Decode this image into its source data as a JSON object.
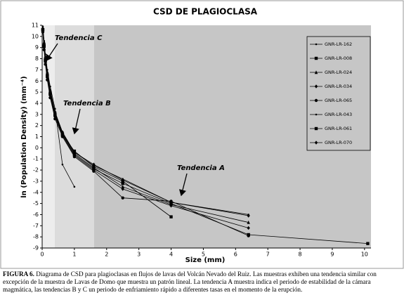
{
  "chart_data": {
    "type": "line",
    "title": "CSD DE PLAGIOCLASA",
    "x_label": "Size (mm)",
    "y_label": "ln (Population Density) (mm⁻⁴)",
    "annotations": [
      "Tendencia C",
      "Tendencia B",
      "Tendencia A"
    ],
    "x": [
      0.02,
      0.06,
      0.1,
      0.16,
      0.25,
      0.4,
      0.63,
      1.0,
      1.6,
      2.5,
      4.0,
      6.4,
      10.1
    ],
    "series": [
      {
        "name": "GNR-LR-162",
        "color": "#000000",
        "values": [
          10.8,
          9.5,
          8.2,
          6.8,
          5.2,
          3.2,
          1.4,
          -0.4,
          -1.6,
          -2.8,
          -4.9,
          -6.0,
          null
        ]
      },
      {
        "name": "GNR-LR-008",
        "color": "#000000",
        "values": [
          10.6,
          9.2,
          7.9,
          6.5,
          4.9,
          3.0,
          1.2,
          -0.6,
          -1.9,
          -3.2,
          -5.0,
          -7.8,
          -8.6
        ]
      },
      {
        "name": "GNR-LR-024",
        "color": "#000000",
        "values": [
          10.7,
          9.3,
          8.0,
          6.6,
          5.0,
          3.1,
          1.3,
          -0.5,
          -1.8,
          -3.5,
          -5.1,
          -6.7,
          null
        ]
      },
      {
        "name": "GNR-LR-034",
        "color": "#000000",
        "values": [
          10.5,
          9.0,
          7.7,
          6.3,
          4.7,
          2.8,
          1.1,
          -0.7,
          -2.0,
          -3.7,
          -5.2,
          -7.2,
          null
        ]
      },
      {
        "name": "GNR-LR-065",
        "color": "#000000",
        "values": [
          10.4,
          8.8,
          7.5,
          6.1,
          4.5,
          2.6,
          1.0,
          -0.8,
          -2.1,
          -4.5,
          -4.8,
          -7.9,
          null
        ]
      },
      {
        "name": "GNR-LR-043",
        "color": "#000000",
        "values": [
          10.9,
          9.6,
          8.4,
          7.0,
          5.5,
          3.5,
          -1.5,
          -3.5,
          null,
          null,
          null,
          null,
          null
        ]
      },
      {
        "name": "GNR-LR-061",
        "color": "#000000",
        "values": [
          10.6,
          9.1,
          7.8,
          6.4,
          4.8,
          2.9,
          1.2,
          -0.3,
          -1.7,
          -3.0,
          -6.2,
          null,
          null
        ]
      },
      {
        "name": "GNR-LR-070",
        "color": "#000000",
        "values": [
          10.7,
          9.4,
          8.1,
          6.7,
          5.1,
          3.2,
          1.4,
          -0.4,
          -1.5,
          -2.9,
          -4.9,
          -6.1,
          null
        ]
      }
    ],
    "xlim": [
      0,
      10.2
    ],
    "xticks": [
      0,
      1,
      2,
      3,
      4,
      5,
      6,
      7,
      8,
      9,
      10
    ],
    "ylim": [
      -9,
      11
    ],
    "yticks": [
      -9,
      -8,
      -7,
      -6,
      -5,
      -4,
      -3,
      -2,
      -1,
      0,
      1,
      2,
      3,
      4,
      5,
      6,
      7,
      8,
      9,
      10,
      11
    ],
    "legend": "upper right"
  },
  "caption": {
    "label": "FIGURA 6.",
    "text": "Diagrama de CSD para plagioclasas en flujos de lavas del Volcán Nevado del Ruiz. Las muestras exhiben una tendencia similar con excepción de la muestra de Lavas de Domo que muestra un patrón lineal. La tendencia A muestra indica el periodo de estabilidad de la cámara magmática, las tendencias B y C un periodo de enfriamiento rápido a diferentes tasas en el momento de la erupción."
  }
}
